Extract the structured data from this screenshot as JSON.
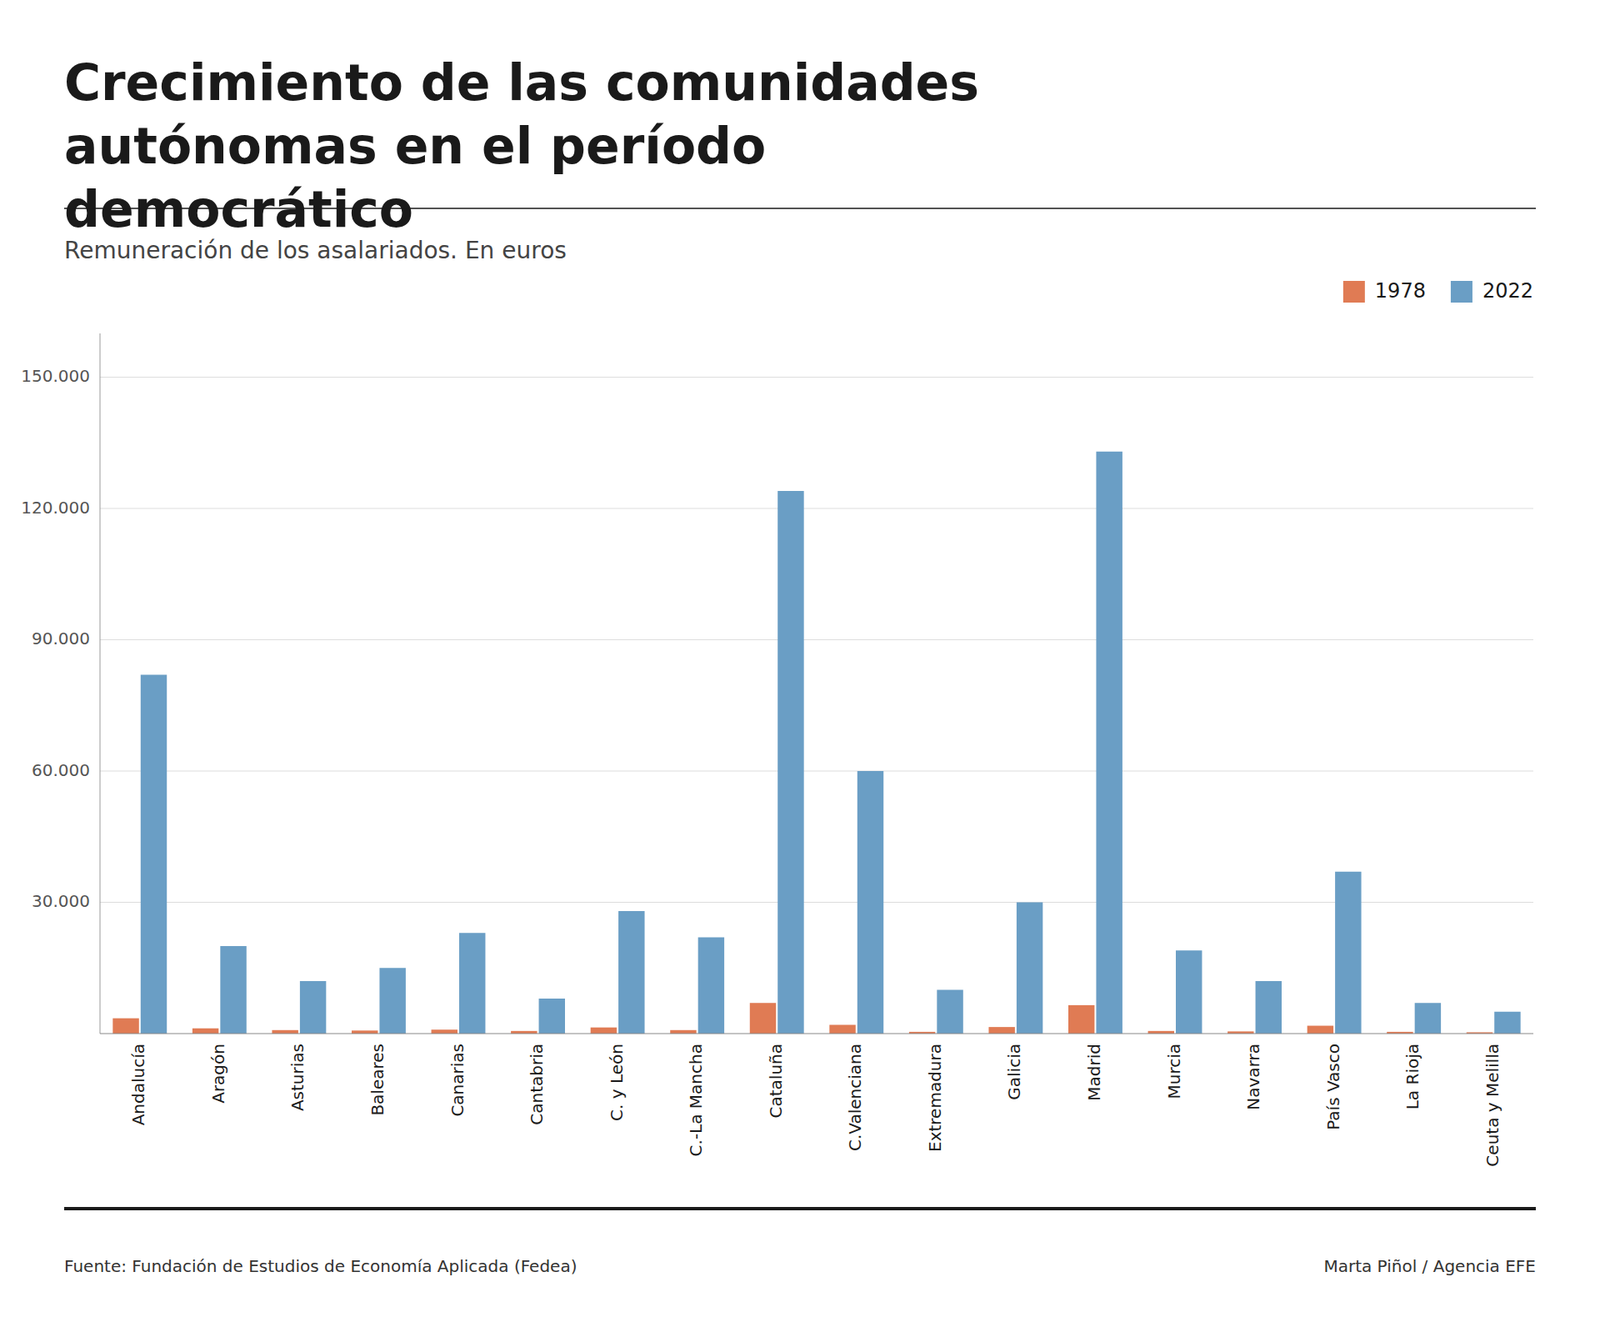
{
  "chart_data": {
    "type": "bar",
    "title": "Crecimiento de las comunidades autónomas en el período democrático",
    "subtitle": "Remuneración de los asalariados. En euros",
    "annotations": [
      "Fuente: Fundación de Estudios de Economía Aplicada (Fedea)",
      "Marta Piñol / Agencia EFE"
    ],
    "categories": [
      "Andalucía",
      "Aragón",
      "Asturias",
      "Baleares",
      "Canarias",
      "Cantabria",
      "C. y León",
      "C.-La Mancha",
      "Cataluña",
      "C.Valenciana",
      "Extremadura",
      "Galicia",
      "Madrid",
      "Murcia",
      "Navarra",
      "País Vasco",
      "La Rioja",
      "Ceuta y Melilla"
    ],
    "series": [
      {
        "name": "1978",
        "color": "#E07B54",
        "values": [
          3500,
          1200,
          800,
          700,
          900,
          600,
          1400,
          800,
          7000,
          2000,
          400,
          1500,
          6500,
          600,
          500,
          1800,
          400,
          300
        ]
      },
      {
        "name": "2022",
        "color": "#6A9EC5",
        "values": [
          82000,
          20000,
          12000,
          15000,
          23000,
          8000,
          28000,
          22000,
          124000,
          60000,
          10000,
          30000,
          133000,
          19000,
          12000,
          37000,
          7000,
          5000
        ]
      }
    ],
    "ylim": [
      0,
      160000
    ],
    "yticks": [
      {
        "value": 30000,
        "label": "30.000"
      },
      {
        "value": 60000,
        "label": "60.000"
      },
      {
        "value": 90000,
        "label": "90.000"
      },
      {
        "value": 120000,
        "label": "120.000"
      },
      {
        "value": 150000,
        "label": "150.000"
      }
    ],
    "grid": true,
    "legend": "upper right"
  }
}
